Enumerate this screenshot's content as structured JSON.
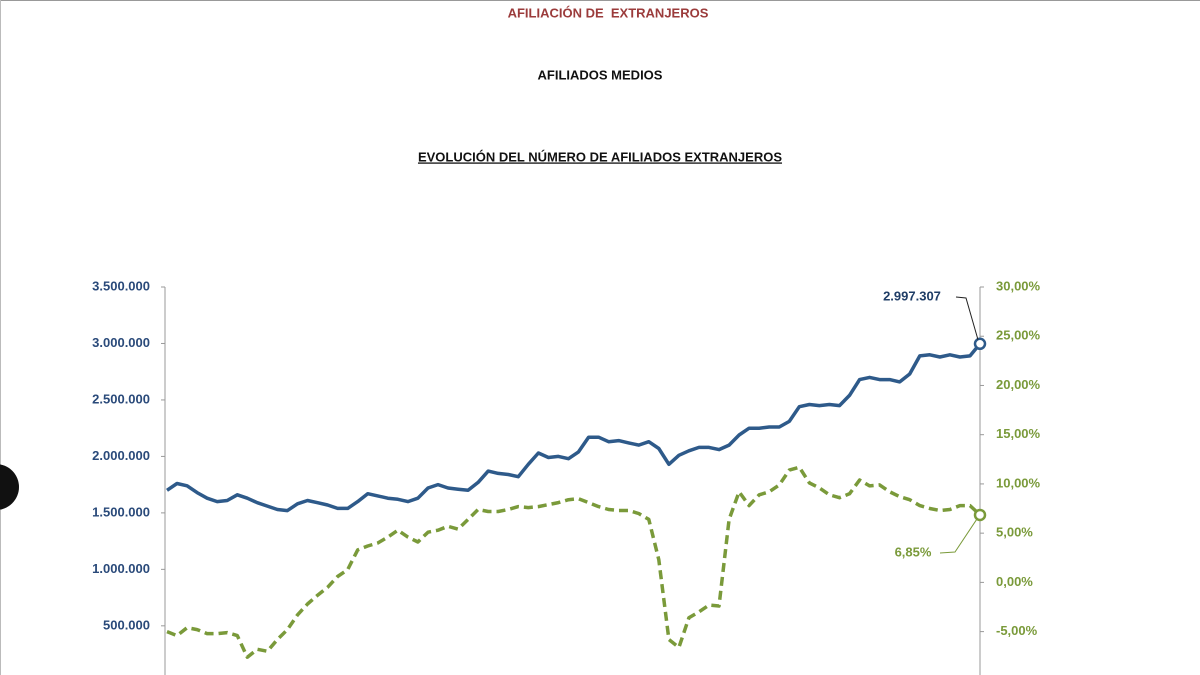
{
  "header": {
    "title": "AFILIACIÓN DE  EXTRANJEROS",
    "subtitle": "AFILIADOS MEDIOS"
  },
  "chart_data": {
    "type": "line",
    "title": "EVOLUCIÓN DEL NÚMERO DE AFILIADOS EXTRANJEROS",
    "ylim": [
      100000,
      3500000
    ],
    "yticks": [
      {
        "value": 500000,
        "label": "500.000"
      },
      {
        "value": 1000000,
        "label": "1.000.000"
      },
      {
        "value": 1500000,
        "label": "1.500.000"
      },
      {
        "value": 2000000,
        "label": "2.000.000"
      },
      {
        "value": 2500000,
        "label": "2.500.000"
      },
      {
        "value": 3000000,
        "label": "3.000.000"
      },
      {
        "value": 3500000,
        "label": "3.500.000"
      }
    ],
    "y2lim": [
      -9,
      30
    ],
    "y2ticks": [
      {
        "value": -5,
        "label": "-5,00%"
      },
      {
        "value": 0,
        "label": "0,00%"
      },
      {
        "value": 5,
        "label": "5,00%"
      },
      {
        "value": 10,
        "label": "10,00%"
      },
      {
        "value": 15,
        "label": "15,00%"
      },
      {
        "value": 20,
        "label": "20,00%"
      },
      {
        "value": 25,
        "label": "25,00%"
      },
      {
        "value": 30,
        "label": "30,00%"
      }
    ],
    "grid": false,
    "series": [
      {
        "color": "#2e5a8a",
        "dashed": false,
        "end_label": "2.997.307",
        "values": [
          1700000,
          1760000,
          1740000,
          1680000,
          1630000,
          1600000,
          1610000,
          1660000,
          1630000,
          1590000,
          1560000,
          1530000,
          1520000,
          1580000,
          1610000,
          1590000,
          1570000,
          1540000,
          1540000,
          1600000,
          1670000,
          1650000,
          1630000,
          1620000,
          1600000,
          1630000,
          1720000,
          1750000,
          1720000,
          1710000,
          1700000,
          1770000,
          1870000,
          1850000,
          1840000,
          1820000,
          1930000,
          2030000,
          1990000,
          2000000,
          1980000,
          2040000,
          2170000,
          2170000,
          2130000,
          2140000,
          2120000,
          2100000,
          2130000,
          2070000,
          1930000,
          2010000,
          2050000,
          2080000,
          2080000,
          2060000,
          2100000,
          2190000,
          2250000,
          2250000,
          2260000,
          2260000,
          2310000,
          2440000,
          2460000,
          2450000,
          2460000,
          2450000,
          2540000,
          2680000,
          2700000,
          2680000,
          2680000,
          2660000,
          2730000,
          2890000,
          2900000,
          2880000,
          2900000,
          2880000,
          2890000,
          2997307
        ]
      },
      {
        "color": "#7a9a3a",
        "dashed": true,
        "axis": "y2",
        "end_label": "6,85%",
        "values": [
          -5.0,
          -5.4,
          -4.6,
          -4.8,
          -5.2,
          -5.2,
          -5.1,
          -5.4,
          -7.6,
          -6.8,
          -7.0,
          -5.8,
          -4.8,
          -3.3,
          -2.2,
          -1.3,
          -0.5,
          0.6,
          1.3,
          3.3,
          3.7,
          4.0,
          4.6,
          5.3,
          4.6,
          4.1,
          5.1,
          5.3,
          5.7,
          5.4,
          6.4,
          7.4,
          7.2,
          7.2,
          7.4,
          7.7,
          7.6,
          7.7,
          7.9,
          8.1,
          8.4,
          8.5,
          8.1,
          7.7,
          7.4,
          7.3,
          7.3,
          7.0,
          6.4,
          2.3,
          -5.8,
          -6.6,
          -3.6,
          -3.0,
          -2.3,
          -2.4,
          6.4,
          9.2,
          7.8,
          8.9,
          9.2,
          9.9,
          11.4,
          11.7,
          10.1,
          9.6,
          8.9,
          8.6,
          9.0,
          10.4,
          9.8,
          9.9,
          9.2,
          8.7,
          8.4,
          7.8,
          7.5,
          7.3,
          7.4,
          7.8,
          7.8,
          6.85
        ]
      }
    ]
  }
}
